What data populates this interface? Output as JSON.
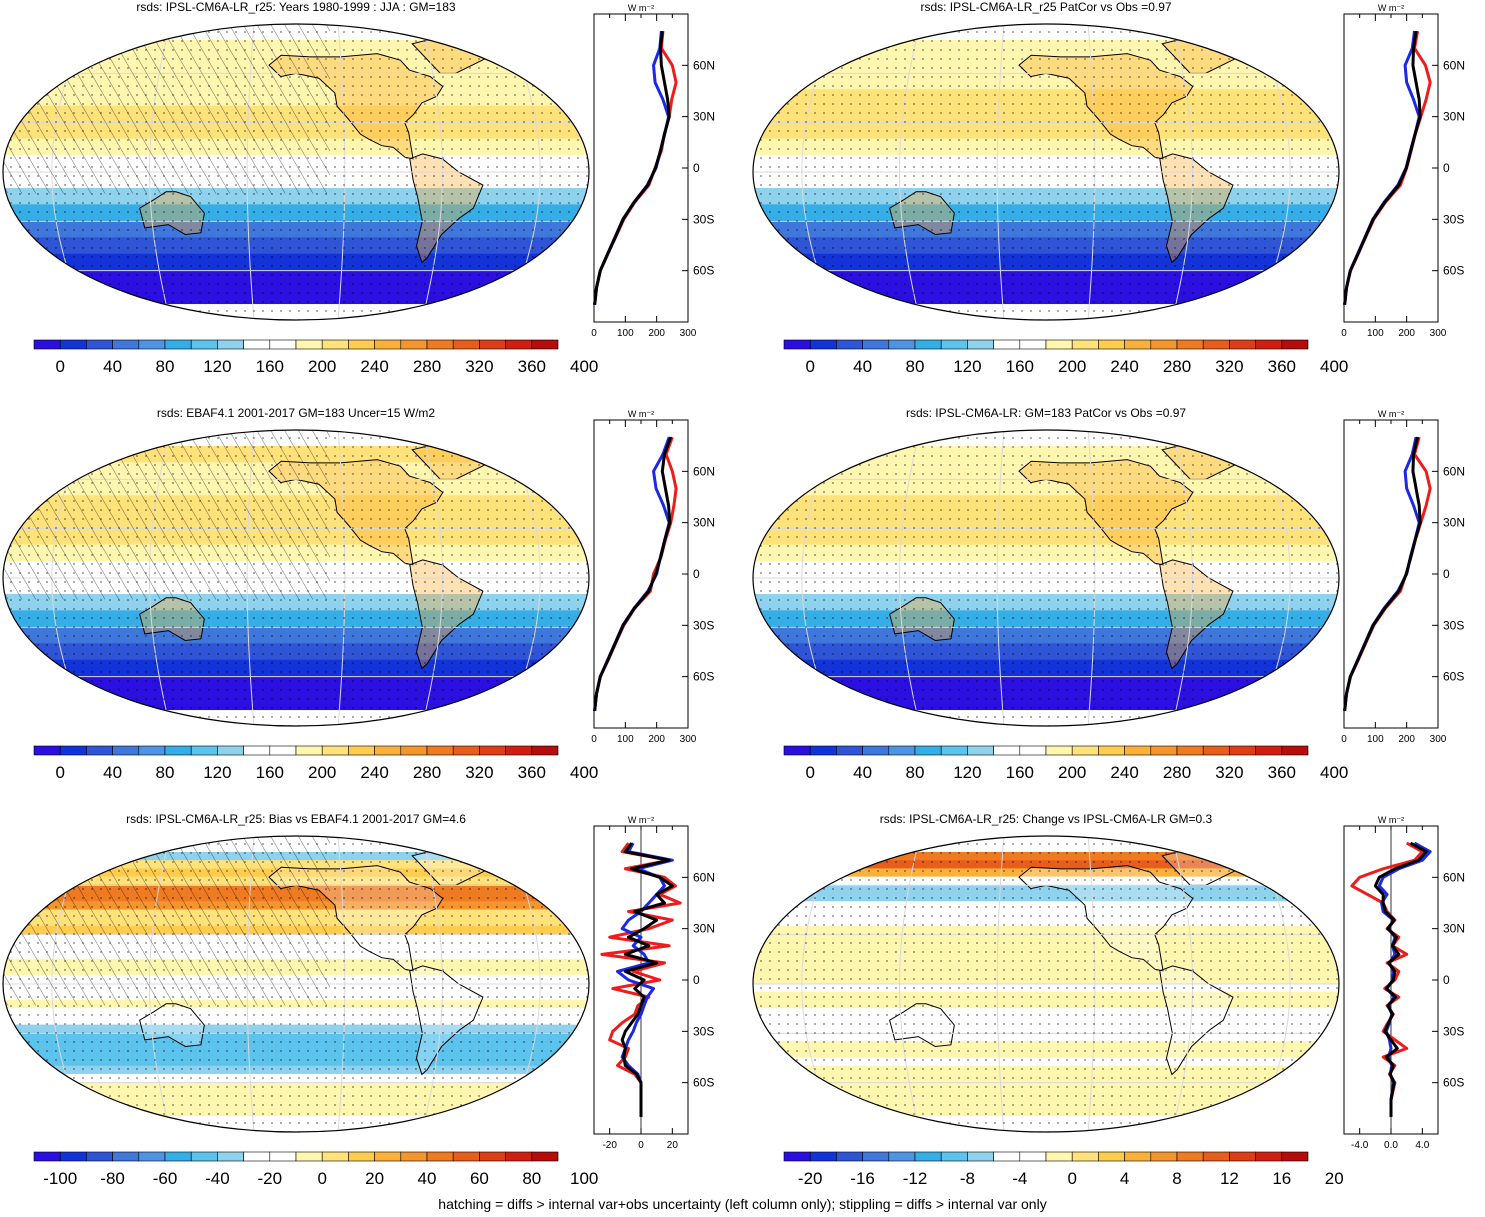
{
  "footer": "hatching = diffs > internal var+obs uncertainty (left column only); stippling = diffs > internal var only",
  "colors": {
    "abs_scale": [
      "#2a0fe0",
      "#1133d8",
      "#2f55d6",
      "#3f77dc",
      "#4f93e4",
      "#35aee8",
      "#5cc3ec",
      "#8fd2ee",
      "#ffffff",
      "#ffffff",
      "#fff6b0",
      "#ffe27a",
      "#ffcc4d",
      "#fbb03a",
      "#f5952e",
      "#ee7a22",
      "#e65d1c",
      "#dd3e17",
      "#cf1f12",
      "#b50c0c"
    ],
    "diff_scale": [
      "#2a0fe0",
      "#1133d8",
      "#2f55d6",
      "#3f77dc",
      "#4f93e4",
      "#35aee8",
      "#5cc3ec",
      "#8fd2ee",
      "#ffffff",
      "#ffffff",
      "#fff6b0",
      "#ffe27a",
      "#ffcc4d",
      "#fbb03a",
      "#f5952e",
      "#ee7a22",
      "#e65d1c",
      "#dd3e17",
      "#cf1f12",
      "#b50c0c"
    ],
    "line_red": "#ee1c1c",
    "line_blue": "#1b28e6",
    "line_black": "#000000"
  },
  "panels": [
    {
      "title": "rsds: IPSL-CM6A-LR_r25: Years 1980-1999 : JJA : GM=183",
      "cbar_labels": [
        "0",
        "40",
        "80",
        "120",
        "160",
        "200",
        "240",
        "280",
        "320",
        "360",
        "400"
      ],
      "profile": {
        "unit": "W m⁻²",
        "x_ticks": [
          "0",
          "100",
          "200",
          "300"
        ],
        "y_ticks": [
          "60N",
          "30N",
          "0",
          "30S",
          "60S"
        ],
        "xlim": [
          0,
          300
        ]
      }
    },
    {
      "title": "rsds: IPSL-CM6A-LR_r25 PatCor vs Obs =0.97",
      "cbar_labels": [
        "0",
        "40",
        "80",
        "120",
        "160",
        "200",
        "240",
        "280",
        "320",
        "360",
        "400"
      ],
      "profile": {
        "unit": "W m⁻²",
        "x_ticks": [
          "0",
          "100",
          "200",
          "300"
        ],
        "y_ticks": [
          "60N",
          "30N",
          "0",
          "30S",
          "60S"
        ],
        "xlim": [
          0,
          300
        ]
      }
    },
    {
      "title": "rsds: EBAF4.1 2001-2017 GM=183 Uncer=15 W/m2",
      "cbar_labels": [
        "0",
        "40",
        "80",
        "120",
        "160",
        "200",
        "240",
        "280",
        "320",
        "360",
        "400"
      ],
      "profile": {
        "unit": "W m⁻²",
        "x_ticks": [
          "0",
          "100",
          "200",
          "300"
        ],
        "y_ticks": [
          "60N",
          "30N",
          "0",
          "30S",
          "60S"
        ],
        "xlim": [
          0,
          300
        ]
      }
    },
    {
      "title": "rsds: IPSL-CM6A-LR: GM=183 PatCor vs Obs =0.97",
      "cbar_labels": [
        "0",
        "40",
        "80",
        "120",
        "160",
        "200",
        "240",
        "280",
        "320",
        "360",
        "400"
      ],
      "profile": {
        "unit": "W m⁻²",
        "x_ticks": [
          "0",
          "100",
          "200",
          "300"
        ],
        "y_ticks": [
          "60N",
          "30N",
          "0",
          "30S",
          "60S"
        ],
        "xlim": [
          0,
          300
        ]
      }
    },
    {
      "title": "rsds: IPSL-CM6A-LR_r25: Bias vs EBAF4.1 2001-2017 GM=4.6",
      "cbar_labels": [
        "-100",
        "-80",
        "-60",
        "-40",
        "-20",
        "0",
        "20",
        "40",
        "60",
        "80",
        "100"
      ],
      "profile": {
        "unit": "W m⁻²",
        "x_ticks": [
          "-20",
          "0",
          "20"
        ],
        "y_ticks": [
          "60N",
          "30N",
          "0",
          "30S",
          "60S"
        ],
        "xlim": [
          -30,
          30
        ]
      }
    },
    {
      "title": "rsds: IPSL-CM6A-LR_r25: Change vs IPSL-CM6A-LR GM=0.3",
      "cbar_labels": [
        "-20",
        "-16",
        "-12",
        "-8",
        "-4",
        "0",
        "4",
        "8",
        "12",
        "16",
        "20"
      ],
      "profile": {
        "unit": "W m⁻²",
        "x_ticks": [
          "-4.0",
          "0.0",
          "4.0"
        ],
        "y_ticks": [
          "60N",
          "30N",
          "0",
          "30S",
          "60S"
        ],
        "xlim": [
          -6,
          6
        ]
      }
    }
  ],
  "chart_data": [
    {
      "type": "line",
      "title": "rsds: IPSL-CM6A-LR_r25: Years 1980-1999 : JJA : GM=183",
      "xlabel": "W m-2",
      "xlim": [
        0,
        300
      ],
      "y": [
        80,
        70,
        60,
        50,
        40,
        30,
        20,
        10,
        0,
        -10,
        -20,
        -30,
        -40,
        -50,
        -60,
        -70,
        -80
      ],
      "series": [
        {
          "values": [
            220,
            215,
            250,
            262,
            248,
            240,
            225,
            215,
            195,
            175,
            130,
            95,
            70,
            45,
            20,
            8,
            2
          ]
        },
        {
          "values": [
            215,
            210,
            190,
            195,
            220,
            238,
            226,
            212,
            198,
            170,
            128,
            92,
            68,
            44,
            20,
            8,
            2
          ]
        },
        {
          "values": [
            218,
            212,
            215,
            225,
            235,
            240,
            225,
            212,
            196,
            172,
            128,
            93,
            69,
            44,
            20,
            8,
            2
          ]
        }
      ]
    },
    {
      "type": "line",
      "title": "rsds: IPSL-CM6A-LR_r25 PatCor vs Obs =0.97",
      "xlabel": "W m-2",
      "xlim": [
        0,
        300
      ],
      "y": [
        80,
        70,
        60,
        50,
        40,
        30,
        20,
        10,
        0,
        -10,
        -20,
        -30,
        -40,
        -50,
        -60,
        -70,
        -80
      ],
      "series": [
        {
          "values": [
            235,
            225,
            260,
            275,
            262,
            245,
            228,
            214,
            200,
            180,
            132,
            95,
            70,
            46,
            21,
            8,
            2
          ]
        },
        {
          "values": [
            225,
            218,
            195,
            200,
            222,
            240,
            227,
            212,
            198,
            172,
            128,
            92,
            68,
            44,
            20,
            8,
            2
          ]
        },
        {
          "values": [
            230,
            222,
            220,
            230,
            240,
            243,
            227,
            213,
            199,
            175,
            130,
            93,
            69,
            45,
            20,
            8,
            2
          ]
        }
      ]
    },
    {
      "type": "line",
      "title": "rsds: EBAF4.1 2001-2017 GM=183 Uncer=15 W/m2",
      "xlabel": "W m-2",
      "xlim": [
        0,
        300
      ],
      "y": [
        80,
        70,
        60,
        50,
        40,
        30,
        20,
        10,
        0,
        -10,
        -20,
        -30,
        -40,
        -50,
        -60,
        -70,
        -80
      ],
      "series": [
        {
          "values": [
            250,
            230,
            250,
            262,
            255,
            245,
            228,
            214,
            190,
            180,
            130,
            95,
            70,
            46,
            20,
            8,
            2
          ]
        },
        {
          "values": [
            240,
            220,
            190,
            198,
            222,
            240,
            226,
            212,
            200,
            172,
            128,
            92,
            68,
            44,
            20,
            8,
            2
          ]
        },
        {
          "values": [
            245,
            225,
            218,
            228,
            238,
            242,
            226,
            213,
            197,
            175,
            129,
            93,
            69,
            45,
            20,
            8,
            2
          ]
        }
      ]
    },
    {
      "type": "line",
      "title": "rsds: IPSL-CM6A-LR: GM=183 PatCor vs Obs =0.97",
      "xlabel": "W m-2",
      "xlim": [
        0,
        300
      ],
      "y": [
        80,
        70,
        60,
        50,
        40,
        30,
        20,
        10,
        0,
        -10,
        -20,
        -30,
        -40,
        -50,
        -60,
        -70,
        -80
      ],
      "series": [
        {
          "values": [
            240,
            225,
            262,
            275,
            262,
            245,
            228,
            214,
            198,
            180,
            132,
            95,
            70,
            46,
            21,
            8,
            2
          ]
        },
        {
          "values": [
            230,
            218,
            195,
            200,
            222,
            240,
            227,
            212,
            200,
            172,
            128,
            92,
            68,
            44,
            20,
            8,
            2
          ]
        },
        {
          "values": [
            235,
            222,
            220,
            230,
            240,
            243,
            227,
            213,
            199,
            175,
            130,
            93,
            69,
            45,
            20,
            8,
            2
          ]
        }
      ]
    },
    {
      "type": "line",
      "title": "rsds: IPSL-CM6A-LR_r25: Bias vs EBAF4.1 2001-2017 GM=4.6",
      "xlabel": "W m-2",
      "xlim": [
        -30,
        30
      ],
      "y": [
        80,
        75,
        70,
        65,
        60,
        55,
        50,
        45,
        40,
        35,
        30,
        25,
        20,
        15,
        10,
        5,
        0,
        -5,
        -10,
        -15,
        -20,
        -25,
        -30,
        -35,
        -40,
        -45,
        -50,
        -55,
        -60,
        -70,
        -80
      ],
      "series": [
        {
          "values": [
            -8,
            -12,
            18,
            -10,
            15,
            22,
            12,
            25,
            -8,
            20,
            5,
            -20,
            18,
            -25,
            15,
            -5,
            12,
            -18,
            5,
            -2,
            -4,
            -12,
            -18,
            -20,
            -8,
            -10,
            -15,
            -4,
            0,
            0,
            0
          ]
        },
        {
          "values": [
            -5,
            -8,
            20,
            -2,
            12,
            15,
            10,
            5,
            0,
            -8,
            -12,
            0,
            -5,
            2,
            5,
            -15,
            -8,
            8,
            4,
            2,
            0,
            -3,
            -5,
            -8,
            -10,
            -12,
            -8,
            -2,
            0,
            0,
            0
          ]
        },
        {
          "values": [
            -6,
            -10,
            18,
            -6,
            12,
            20,
            10,
            15,
            -4,
            10,
            2,
            -8,
            5,
            -10,
            10,
            -10,
            2,
            -4,
            2,
            0,
            -2,
            -6,
            -10,
            -12,
            -10,
            -11,
            -10,
            -3,
            0,
            0,
            0
          ]
        }
      ]
    },
    {
      "type": "line",
      "title": "rsds: IPSL-CM6A-LR_r25: Change vs IPSL-CM6A-LR GM=0.3",
      "xlabel": "W m-2",
      "xlim": [
        -6,
        6
      ],
      "y": [
        80,
        75,
        70,
        65,
        60,
        55,
        50,
        45,
        40,
        35,
        30,
        25,
        20,
        15,
        10,
        5,
        0,
        -5,
        -10,
        -15,
        -20,
        -25,
        -30,
        -35,
        -40,
        -45,
        -50,
        -55,
        -60,
        -70,
        -80
      ],
      "series": [
        {
          "values": [
            2,
            4,
            3,
            -1,
            -4,
            -5,
            -3,
            -1,
            -0.5,
            0.5,
            -0.5,
            1,
            0.2,
            2,
            -0.5,
            1,
            0.5,
            -0.8,
            1,
            -0.5,
            0.3,
            -0.4,
            -1,
            0.5,
            2,
            -1,
            0.5,
            -0.2,
            0.5,
            0,
            0
          ]
        },
        {
          "values": [
            3,
            5,
            4,
            1,
            -1,
            -1.5,
            -0.5,
            -1.2,
            -1,
            0.3,
            -0.3,
            0.5,
            0.2,
            0.5,
            -0.2,
            0.3,
            0.2,
            -0.5,
            0.4,
            -0.3,
            0.1,
            -0.2,
            -0.6,
            -0.2,
            0,
            -0.3,
            0.1,
            -0.1,
            0.3,
            0,
            0
          ]
        },
        {
          "values": [
            2.5,
            4.5,
            3.5,
            0.5,
            -1.5,
            -2,
            -1,
            -1,
            -0.7,
            0.4,
            -0.4,
            0.7,
            0.2,
            1,
            -0.3,
            0.5,
            0.3,
            -0.6,
            0.6,
            -0.4,
            0.2,
            -0.3,
            -0.8,
            0,
            0.8,
            -0.6,
            0.3,
            -0.1,
            0.4,
            0,
            0
          ]
        }
      ]
    }
  ]
}
